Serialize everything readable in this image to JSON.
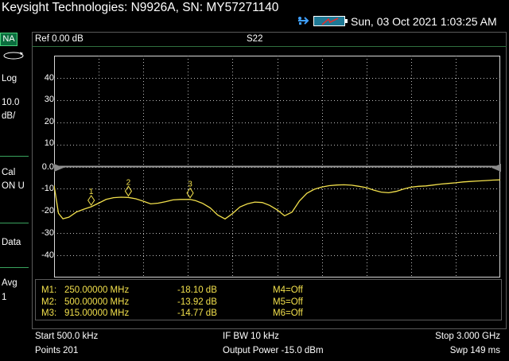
{
  "titlebar": {
    "title": "Keysight Technologies: N9926A, SN: MY57271140",
    "datetime": "Sun, 03 Oct 2021 1:03:25 AM",
    "usb_icon": "usb-icon",
    "battery_icon": "battery-icon"
  },
  "sidebar": {
    "mode": "NA",
    "rotate_icon": "rotate-icon",
    "format": "Log",
    "scale_value": "10.0",
    "scale_unit": "dB/",
    "cal_label": "Cal",
    "cal_state": "ON U",
    "data_label": "Data",
    "avg_label": "Avg",
    "avg_value": "1"
  },
  "panel": {
    "ref_label": "Ref 0.00 dB",
    "trace_name": "S22"
  },
  "chart_data": {
    "type": "line",
    "yticks": [
      "40",
      "30",
      "20",
      "10",
      "0.0",
      "-10",
      "-20",
      "-30",
      "-40"
    ],
    "ylim": [
      -50,
      50
    ],
    "reference_level": 0.0,
    "xlim": [
      0.0005,
      3.0
    ],
    "grid": true,
    "trace_color": "#f2e04c",
    "series": [
      {
        "x": [
          0.0005,
          0.03,
          0.06,
          0.1,
          0.15,
          0.2,
          0.25,
          0.3,
          0.35,
          0.4,
          0.45,
          0.5,
          0.55,
          0.6,
          0.65,
          0.7,
          0.75,
          0.8,
          0.85,
          0.915,
          0.95,
          1.0,
          1.05,
          1.1,
          1.15,
          1.2,
          1.25,
          1.3,
          1.35,
          1.4,
          1.45,
          1.5,
          1.55,
          1.6,
          1.65,
          1.7,
          1.75,
          1.8,
          1.85,
          1.9,
          1.95,
          2.0,
          2.05,
          2.1,
          2.15,
          2.2,
          2.25,
          2.3,
          2.35,
          2.4,
          2.45,
          2.5,
          2.55,
          2.6,
          2.65,
          2.7,
          2.75,
          2.8,
          2.85,
          2.9,
          2.95,
          3.0
        ],
        "y": [
          -8.5,
          -21.0,
          -23.5,
          -22.8,
          -20.5,
          -19.2,
          -18.1,
          -16.5,
          -14.8,
          -14.0,
          -13.8,
          -13.9,
          -14.5,
          -15.6,
          -16.8,
          -16.5,
          -15.8,
          -15.0,
          -14.8,
          -14.8,
          -15.3,
          -16.6,
          -18.6,
          -21.8,
          -23.6,
          -21.2,
          -18.2,
          -16.8,
          -16.0,
          -16.2,
          -17.5,
          -19.5,
          -22.2,
          -20.5,
          -15.5,
          -12.0,
          -10.2,
          -9.2,
          -8.6,
          -8.3,
          -8.2,
          -8.4,
          -8.9,
          -9.5,
          -10.6,
          -11.5,
          -11.8,
          -11.2,
          -10.1,
          -9.3,
          -8.9,
          -8.7,
          -8.3,
          -7.9,
          -7.6,
          -7.3,
          -6.9,
          -6.7,
          -6.5,
          -6.3,
          -6.1,
          -6.0
        ]
      }
    ],
    "markers": [
      {
        "label": "1",
        "x": 0.25,
        "y": -18.1
      },
      {
        "label": "2",
        "x": 0.5,
        "y": -13.92
      },
      {
        "label": "3",
        "x": 0.915,
        "y": -14.77
      }
    ]
  },
  "marker_table": {
    "rows": [
      {
        "name": "M1:",
        "freq": "250.00000 MHz",
        "value": "-18.10 dB",
        "other": "M4=Off"
      },
      {
        "name": "M2:",
        "freq": "500.00000 MHz",
        "value": "-13.92 dB",
        "other": "M5=Off"
      },
      {
        "name": "M3:",
        "freq": "915.00000 MHz",
        "value": "-14.77 dB",
        "other": "M6=Off"
      }
    ]
  },
  "bottom": {
    "start": "Start 500.0 kHz",
    "points": "Points 201",
    "ifbw": "IF BW 10 kHz",
    "output_power": "Output Power -15.0 dBm",
    "stop": "Stop 3.000 GHz",
    "sweep": "Swp 149 ms"
  }
}
